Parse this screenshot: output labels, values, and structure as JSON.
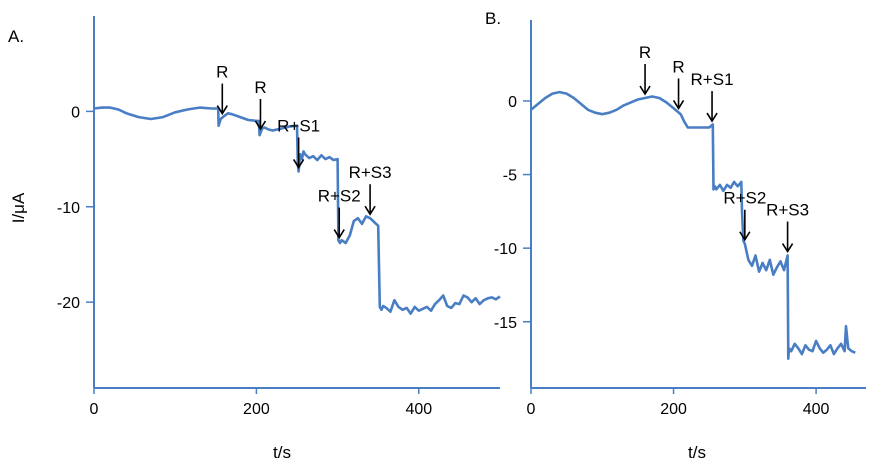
{
  "chart_data": [
    {
      "panel_label": "A.",
      "type": "line",
      "xlabel": "t/s",
      "ylabel": "I/μA",
      "xlim": [
        0,
        500
      ],
      "ylim": [
        -29,
        10
      ],
      "xticks": [
        0,
        200,
        400
      ],
      "yticks": [
        0,
        -10,
        -20
      ],
      "grid": false,
      "color": "#4a7ec4",
      "series": [
        {
          "x": [
            0,
            10,
            20,
            30,
            40,
            55,
            70,
            85,
            100,
            115,
            130,
            145,
            150,
            153,
            153.5,
            156,
            160,
            165,
            170,
            180,
            190,
            200,
            203,
            204,
            207,
            210,
            215,
            220,
            230,
            240,
            250,
            251,
            252,
            254,
            256,
            258,
            260,
            265,
            270,
            275,
            280,
            285,
            290,
            295,
            300,
            301,
            303,
            305,
            310,
            315,
            320,
            325,
            330,
            335,
            340,
            345,
            350,
            352,
            354,
            356,
            360,
            365,
            370,
            375,
            380,
            385,
            390,
            395,
            400,
            405,
            410,
            415,
            420,
            425,
            430,
            435,
            440,
            445,
            450,
            455,
            460,
            465,
            470,
            475,
            480,
            485,
            490,
            495,
            500
          ],
          "y": [
            0.3,
            0.4,
            0.4,
            0.2,
            -0.2,
            -0.6,
            -0.8,
            -0.6,
            -0.1,
            0.2,
            0.4,
            0.3,
            0.3,
            0.3,
            -1.5,
            -0.8,
            -0.5,
            -0.2,
            -0.3,
            -0.6,
            -0.9,
            -1.0,
            -1.0,
            -2.5,
            -1.8,
            -1.7,
            -1.9,
            -2.0,
            -1.8,
            -1.6,
            -1.5,
            -5.5,
            -6.3,
            -4.5,
            -5.0,
            -4.2,
            -4.5,
            -4.9,
            -4.7,
            -5.1,
            -4.6,
            -5.0,
            -4.8,
            -5.1,
            -5.0,
            -13.5,
            -13.8,
            -13.5,
            -13.8,
            -13.0,
            -11.5,
            -11.2,
            -11.8,
            -11.0,
            -11.2,
            -11.6,
            -12.0,
            -20.5,
            -20.8,
            -20.4,
            -20.6,
            -21.0,
            -19.8,
            -20.5,
            -20.8,
            -20.6,
            -21.2,
            -20.5,
            -20.9,
            -20.7,
            -20.5,
            -20.9,
            -20.2,
            -19.8,
            -19.3,
            -20.4,
            -20.6,
            -20.1,
            -20.2,
            -19.3,
            -19.5,
            -20.0,
            -19.6,
            -20.2,
            -19.8,
            -19.6,
            -19.5,
            -19.7,
            -19.4
          ]
        }
      ],
      "annotations": [
        {
          "text": "R",
          "x": 158
        },
        {
          "text": "R",
          "x": 205
        },
        {
          "text": "R+S1",
          "x": 252
        },
        {
          "text": "R+S2",
          "x": 302
        },
        {
          "text": "R+S3",
          "x": 340
        }
      ]
    },
    {
      "panel_label": "B.",
      "type": "line",
      "xlabel": "t/s",
      "ylabel": "",
      "xlim": [
        0,
        470
      ],
      "ylim": [
        -19.5,
        5.5
      ],
      "xticks": [
        0,
        200,
        400
      ],
      "yticks": [
        0,
        -5,
        -10,
        -15
      ],
      "grid": false,
      "color": "#4a7ec4",
      "series": [
        {
          "x": [
            0,
            10,
            20,
            30,
            40,
            50,
            60,
            70,
            80,
            90,
            100,
            110,
            120,
            130,
            140,
            150,
            160,
            170,
            180,
            190,
            200,
            210,
            215,
            220,
            225,
            230,
            240,
            250,
            255,
            256,
            258,
            260,
            265,
            270,
            275,
            280,
            285,
            290,
            295,
            296,
            298,
            300,
            305,
            310,
            315,
            320,
            325,
            330,
            335,
            340,
            345,
            350,
            355,
            360,
            361,
            362,
            365,
            370,
            375,
            380,
            385,
            390,
            395,
            400,
            405,
            410,
            415,
            420,
            425,
            430,
            435,
            440,
            442,
            445,
            450,
            455
          ],
          "y": [
            -0.6,
            -0.2,
            0.2,
            0.5,
            0.6,
            0.5,
            0.2,
            -0.2,
            -0.6,
            -0.8,
            -0.9,
            -0.8,
            -0.6,
            -0.3,
            -0.1,
            0.1,
            0.2,
            0.3,
            0.2,
            -0.1,
            -0.5,
            -0.9,
            -1.4,
            -1.8,
            -1.8,
            -1.8,
            -1.8,
            -1.8,
            -1.6,
            -6.0,
            -5.8,
            -6.0,
            -5.7,
            -6.1,
            -5.7,
            -5.9,
            -5.5,
            -5.8,
            -5.5,
            -7.5,
            -9.5,
            -9.7,
            -10.8,
            -11.2,
            -10.5,
            -11.6,
            -11.0,
            -11.5,
            -10.8,
            -11.8,
            -11.3,
            -10.9,
            -11.5,
            -10.5,
            -17.5,
            -16.8,
            -17.0,
            -16.5,
            -16.8,
            -17.2,
            -16.6,
            -16.9,
            -17.0,
            -16.3,
            -16.8,
            -17.1,
            -16.9,
            -16.6,
            -17.2,
            -16.8,
            -16.5,
            -17.0,
            -15.3,
            -16.8,
            -17.0,
            -17.1
          ]
        }
      ],
      "annotations": [
        {
          "text": "R",
          "x": 160
        },
        {
          "text": "R",
          "x": 207
        },
        {
          "text": "R+S1",
          "x": 254
        },
        {
          "text": "R+S2",
          "x": 300
        },
        {
          "text": "R+S3",
          "x": 360
        }
      ]
    }
  ]
}
